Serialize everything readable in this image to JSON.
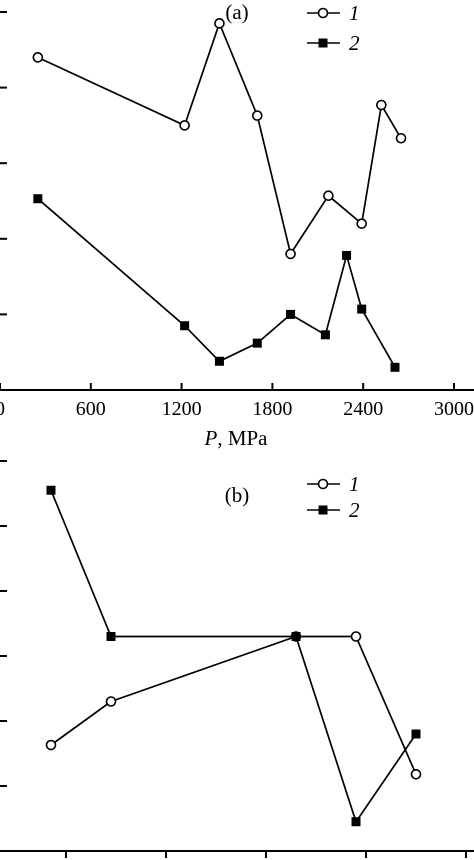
{
  "chart_data": [
    {
      "panel": "(a)",
      "type": "line",
      "xlabel_var": "P",
      "xlabel_unit": ", MPa",
      "xlim": [
        0,
        3000
      ],
      "x_ticks": [
        0,
        600,
        1200,
        1800,
        2400,
        3000
      ],
      "x_tick_labels": [
        "0",
        "600",
        "1200",
        "1800",
        "2400",
        "3000"
      ],
      "ylim": [
        0,
        5
      ],
      "y_ticks": [
        1,
        2,
        3,
        4,
        5
      ],
      "grid": false,
      "legend_position": "top-right",
      "series": [
        {
          "name": "1",
          "marker": "open-circle",
          "x": [
            250,
            1220,
            1450,
            1700,
            1920,
            2170,
            2390,
            2520,
            2650
          ],
          "y": [
            4.4,
            3.5,
            4.85,
            3.63,
            1.8,
            2.57,
            2.2,
            3.77,
            3.33
          ]
        },
        {
          "name": "2",
          "marker": "filled-square",
          "x": [
            250,
            1220,
            1450,
            1700,
            1920,
            2150,
            2290,
            2390,
            2610
          ],
          "y": [
            2.53,
            0.85,
            0.38,
            0.62,
            1.0,
            0.73,
            1.78,
            1.07,
            0.3
          ]
        }
      ]
    },
    {
      "panel": "(b)",
      "type": "line",
      "xlim": [
        0.5,
        4.9
      ],
      "ylim": [
        0,
        6
      ],
      "y_ticks": [
        1,
        2,
        3,
        4,
        5,
        6
      ],
      "x_ticks": [
        1,
        2,
        3,
        4,
        5
      ],
      "grid": false,
      "legend_position": "top-right",
      "series": [
        {
          "name": "1",
          "marker": "open-circle",
          "x": [
            0.85,
            1.45,
            3.3,
            3.9,
            4.5
          ],
          "y": [
            1.63,
            2.3,
            3.3,
            3.3,
            1.18
          ]
        },
        {
          "name": "2",
          "marker": "filled-square",
          "x": [
            0.85,
            1.45,
            3.3,
            3.9,
            4.5
          ],
          "y": [
            5.55,
            3.3,
            3.3,
            0.45,
            1.8
          ]
        }
      ]
    }
  ]
}
